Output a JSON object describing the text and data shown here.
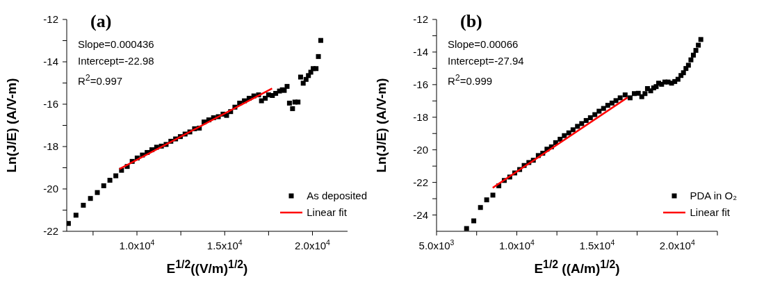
{
  "chart_data": [
    {
      "type": "scatter",
      "title": "(a)",
      "xlabel": "E$^{1/2}$((V/m)$^{1/2}$)",
      "ylabel": "Ln(J/E) (A/V-m)",
      "annotations": [
        "Slope=0.000436",
        "Intercept=-22.98",
        "R$^{2}$=0.997"
      ],
      "xlim": [
        6000,
        22000
      ],
      "ylim": [
        -22,
        -12
      ],
      "xticks": [
        {
          "value": 7500,
          "label": null
        },
        {
          "value": 10000,
          "label": "1.0x10$^{4}$"
        },
        {
          "value": 12500,
          "label": null
        },
        {
          "value": 15000,
          "label": "1.5x10$^{4}$"
        },
        {
          "value": 17500,
          "label": null
        },
        {
          "value": 20000,
          "label": "2.0x10$^{4}$"
        }
      ],
      "yticks": [
        -22,
        {
          "value": -21,
          "label": null
        },
        -20,
        {
          "value": -19,
          "label": null
        },
        -18,
        {
          "value": -17,
          "label": null
        },
        -16,
        {
          "value": -15,
          "label": null
        },
        -14,
        {
          "value": -13,
          "label": null
        },
        -12
      ],
      "legend": "bottom right",
      "marker": "square",
      "series": [
        {
          "name": "As deposited",
          "type": "scatter",
          "color": "#000000",
          "x": [
            6095,
            6527,
            6946,
            7351,
            7743,
            8108,
            8459,
            8797,
            9122,
            9446,
            9730,
            10014,
            10311,
            10581,
            10851,
            11122,
            11392,
            11662,
            11932,
            12203,
            12473,
            12743,
            13014,
            13284,
            13554,
            13824,
            14095,
            14365,
            14635,
            14905,
            15108,
            15338,
            15581,
            15851,
            16122,
            16392,
            16662,
            16932,
            17095,
            17311,
            17500,
            17716,
            17905,
            18122,
            18284,
            18392,
            18554,
            18689,
            18865,
            19000,
            19176,
            19324,
            19473,
            19635,
            19770,
            19905,
            20041,
            20203,
            20338,
            20473
          ],
          "values": [
            -21.63,
            -21.24,
            -20.77,
            -20.45,
            -20.17,
            -19.85,
            -19.59,
            -19.38,
            -19.12,
            -18.94,
            -18.7,
            -18.54,
            -18.4,
            -18.28,
            -18.15,
            -18.03,
            -17.98,
            -17.9,
            -17.75,
            -17.64,
            -17.53,
            -17.41,
            -17.31,
            -17.16,
            -17.13,
            -16.84,
            -16.74,
            -16.64,
            -16.59,
            -16.47,
            -16.53,
            -16.35,
            -16.14,
            -15.95,
            -15.84,
            -15.72,
            -15.61,
            -15.56,
            -15.84,
            -15.72,
            -15.56,
            -15.59,
            -15.49,
            -15.38,
            -15.32,
            -15.35,
            -15.16,
            -15.95,
            -16.21,
            -15.9,
            -15.9,
            -14.72,
            -15.01,
            -14.83,
            -14.65,
            -14.49,
            -14.32,
            -14.32,
            -13.75,
            -12.99
          ]
        },
        {
          "name": "Linear fit",
          "type": "line",
          "color": "#ff0000",
          "marker": "none",
          "x": [
            9000,
            17700
          ],
          "values": [
            -19.06,
            -15.26
          ]
        }
      ]
    },
    {
      "type": "scatter",
      "title": "(b)",
      "xlabel": "E$^{1/2}$ ((A/m)$^{1/2}$)",
      "ylabel": "Ln(J/E) (A/V-m)",
      "annotations": [
        "Slope=0.00066",
        "Intercept=-27.94",
        "R$^{2}$=0.999"
      ],
      "xlim": [
        5000,
        22500
      ],
      "ylim": [
        -25,
        -12
      ],
      "xticks": [
        {
          "value": 5000,
          "label": "5.0x10$^{3}$"
        },
        {
          "value": 7500,
          "label": null
        },
        {
          "value": 10000,
          "label": "1.0x10$^{4}$"
        },
        {
          "value": 12500,
          "label": null
        },
        {
          "value": 15000,
          "label": "1.5x10$^{4}$"
        },
        {
          "value": 17500,
          "label": null
        },
        {
          "value": 20000,
          "label": "2.0x10$^{4}$"
        },
        {
          "value": 22500,
          "label": null
        }
      ],
      "yticks": [
        -24,
        {
          "value": -23,
          "label": null
        },
        -22,
        {
          "value": -21,
          "label": null
        },
        -20,
        {
          "value": -19,
          "label": null
        },
        -18,
        {
          "value": -17,
          "label": null
        },
        -16,
        {
          "value": -15,
          "label": null
        },
        -14,
        {
          "value": -13,
          "label": null
        },
        -12
      ],
      "legend": "bottom right",
      "marker": "square",
      "series": [
        {
          "name": "PDA in O₂",
          "type": "scatter",
          "color": "#000000",
          "x": [
            6871,
            7320,
            7737,
            8124,
            8510,
            8881,
            9221,
            9562,
            9871,
            10180,
            10459,
            10752,
            11031,
            11340,
            11618,
            11881,
            12159,
            12422,
            12700,
            12963,
            13242,
            13505,
            13783,
            14046,
            14324,
            14587,
            14865,
            15128,
            15407,
            15670,
            15933,
            16180,
            16443,
            16752,
            17062,
            17324,
            17572,
            17788,
            17989,
            18144,
            18345,
            18530,
            18685,
            18840,
            19025,
            19226,
            19427,
            19644,
            19845,
            20046,
            20232,
            20387,
            20541,
            20696,
            20851,
            21005,
            21160,
            21314,
            21469
          ],
          "values": [
            -24.83,
            -24.36,
            -23.54,
            -23.07,
            -22.78,
            -22.21,
            -21.88,
            -21.67,
            -21.42,
            -21.21,
            -20.96,
            -20.78,
            -20.64,
            -20.35,
            -20.21,
            -19.96,
            -19.82,
            -19.56,
            -19.35,
            -19.13,
            -18.96,
            -18.77,
            -18.56,
            -18.39,
            -18.2,
            -18.03,
            -17.84,
            -17.63,
            -17.46,
            -17.27,
            -17.13,
            -16.98,
            -16.81,
            -16.63,
            -16.81,
            -16.55,
            -16.53,
            -16.74,
            -16.55,
            -16.24,
            -16.38,
            -16.2,
            -16.12,
            -15.91,
            -15.98,
            -15.84,
            -15.84,
            -15.91,
            -15.81,
            -15.67,
            -15.44,
            -15.27,
            -15.01,
            -14.81,
            -14.48,
            -14.19,
            -13.9,
            -13.58,
            -13.23
          ]
        },
        {
          "name": "Linear fit",
          "type": "line",
          "color": "#ff0000",
          "marker": "none",
          "x": [
            8500,
            16900
          ],
          "values": [
            -22.33,
            -16.79
          ]
        }
      ]
    }
  ]
}
